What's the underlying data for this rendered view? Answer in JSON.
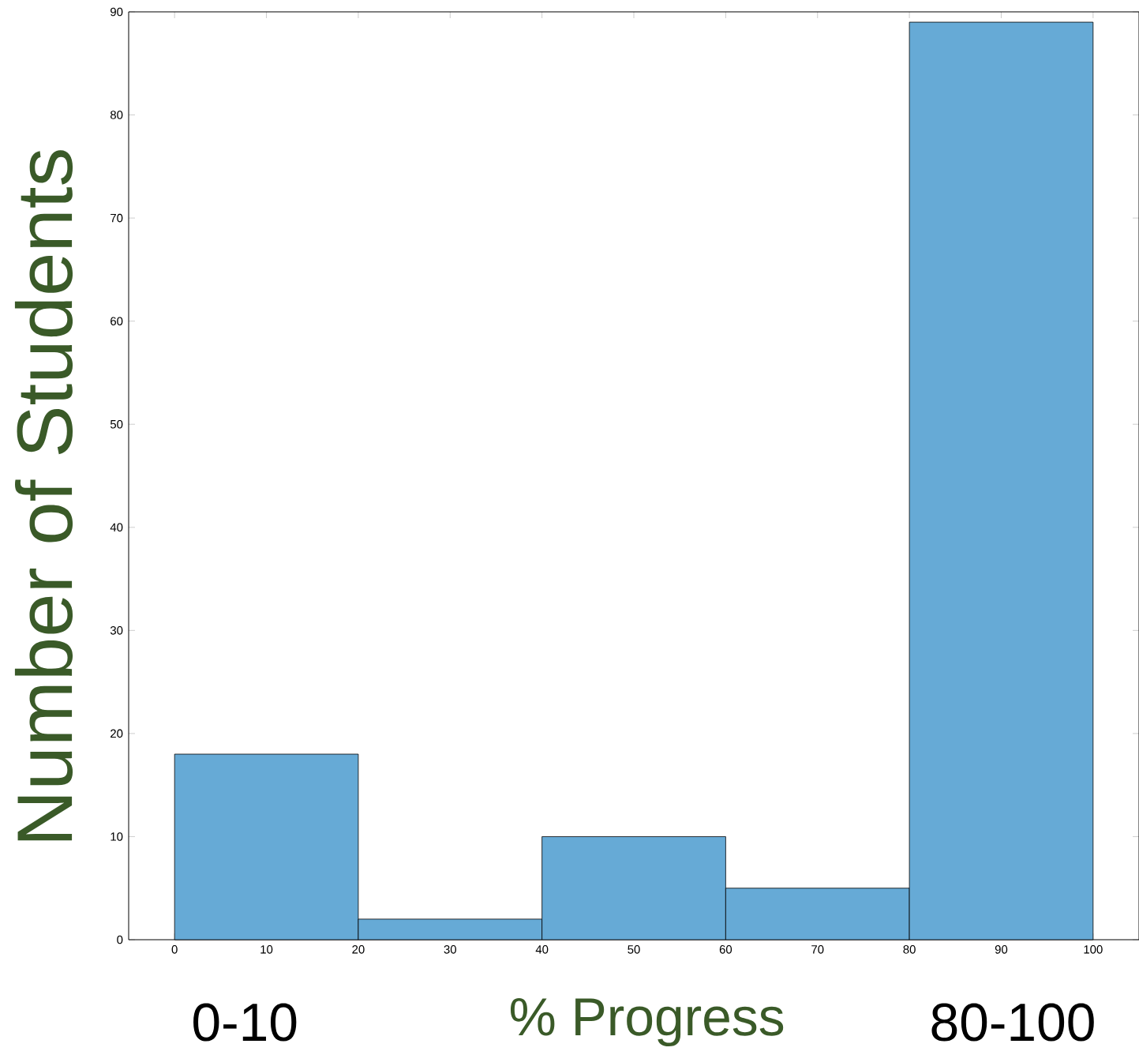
{
  "chart_data": {
    "type": "histogram",
    "xlabel": "% Progress",
    "ylabel": "Number of Students",
    "annotations": [
      "0-10",
      "80-100"
    ],
    "bins": [
      0,
      20,
      40,
      60,
      80,
      100
    ],
    "values": [
      18,
      2,
      10,
      5,
      89
    ],
    "color": "#66aad6",
    "xlim": [
      -5,
      105
    ],
    "ylim": [
      0,
      90
    ],
    "xticks": [
      0,
      10,
      20,
      30,
      40,
      50,
      60,
      70,
      80,
      90,
      100
    ],
    "yticks": [
      0,
      10,
      20,
      30,
      40,
      50,
      60,
      70,
      80,
      90
    ]
  }
}
